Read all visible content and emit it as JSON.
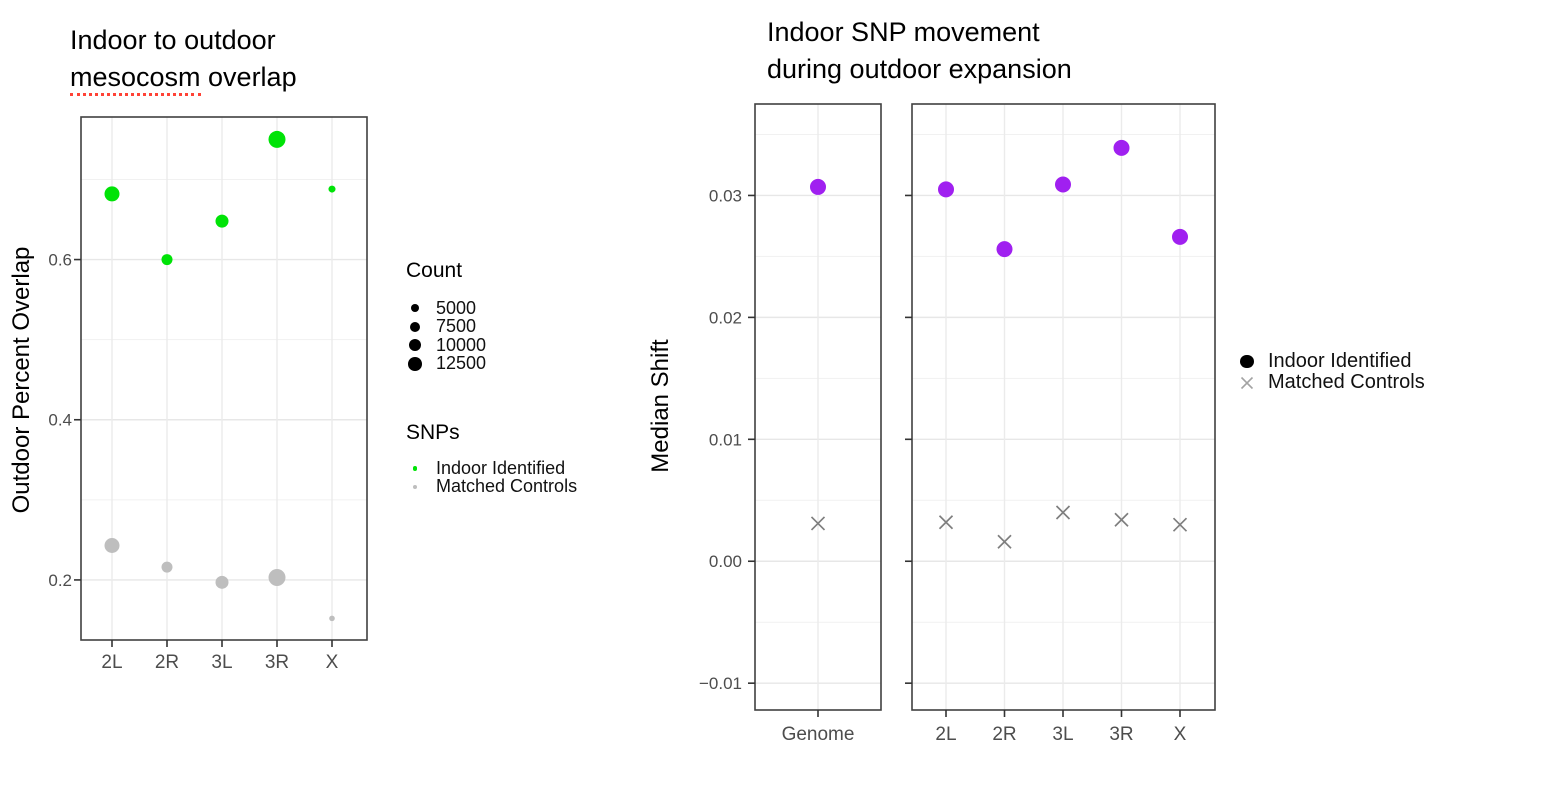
{
  "background": "#ffffff",
  "chart_data": [
    {
      "id": "mesocosm-overlap",
      "type": "scatter",
      "title_line1": "Indoor to outdoor",
      "title_underlined_word": "mesocosm",
      "title_line2_rest": " overlap",
      "ylabel": "Outdoor Percent Overlap",
      "categories": [
        "2L",
        "2R",
        "3L",
        "3R",
        "X"
      ],
      "ylim": [
        0.125,
        0.778
      ],
      "grid": true,
      "legend_position": "right",
      "y_ticks": [
        {
          "value": 0.6,
          "label": "0.6"
        },
        {
          "value": 0.4,
          "label": "0.4"
        },
        {
          "value": 0.2,
          "label": "0.2"
        }
      ],
      "y_minor_gridlines": [
        0.3,
        0.5,
        0.7
      ],
      "series": [
        {
          "name": "Indoor Identified",
          "marker": "circle",
          "color": "#00E307",
          "values": [
            0.682,
            0.6,
            0.648,
            0.75,
            0.688
          ],
          "point_radius_px": [
            7.5,
            5.5,
            6.5,
            8.5,
            3.5
          ]
        },
        {
          "name": "Matched Controls",
          "marker": "circle",
          "color": "#BEBEBE",
          "values": [
            0.243,
            0.216,
            0.197,
            0.203,
            0.152
          ],
          "point_radius_px": [
            7.5,
            5.5,
            6.5,
            8.5,
            2.8
          ]
        }
      ],
      "count_estimates_by_category": [
        12500,
        8000,
        10500,
        14000,
        1500
      ],
      "size_legend": {
        "title": "Count",
        "marker_color": "#000000",
        "entries": [
          {
            "label": "5000",
            "radius_px": 4.2
          },
          {
            "label": "7500",
            "radius_px": 5.0
          },
          {
            "label": "10000",
            "radius_px": 6.0
          },
          {
            "label": "12500",
            "radius_px": 6.9
          }
        ]
      },
      "color_legend": {
        "title": "SNPs",
        "entries": [
          {
            "label": "Indoor Identified",
            "color": "#00E307"
          },
          {
            "label": "Matched Controls",
            "color": "#BEBEBE"
          }
        ]
      }
    },
    {
      "id": "snp-movement",
      "type": "scatter",
      "title_line1": "Indoor SNP movement",
      "title_line2": "during outdoor expansion",
      "ylabel": "Median Shift",
      "ylim": [
        -0.0122,
        0.0375
      ],
      "grid": true,
      "y_ticks": [
        {
          "value": 0.03,
          "label": "0.03"
        },
        {
          "value": 0.02,
          "label": "0.02"
        },
        {
          "value": 0.01,
          "label": "0.01"
        },
        {
          "value": 0.0,
          "label": "0.00"
        },
        {
          "value": -0.01,
          "label": "−0.01"
        }
      ],
      "y_minor_gridlines": [
        0.035,
        0.025,
        0.015,
        0.005,
        -0.005
      ],
      "panels": [
        {
          "categories": [
            "Genome"
          ],
          "series": [
            {
              "name": "Indoor Identified",
              "marker": "circle",
              "color": "#A020F0",
              "values": [
                0.0307
              ]
            },
            {
              "name": "Matched Controls",
              "marker": "x",
              "color": "#7E7E7E",
              "values": [
                0.0031
              ]
            }
          ]
        },
        {
          "categories": [
            "2L",
            "2R",
            "3L",
            "3R",
            "X"
          ],
          "series": [
            {
              "name": "Indoor Identified",
              "marker": "circle",
              "color": "#A020F0",
              "values": [
                0.0305,
                0.0256,
                0.0309,
                0.0339,
                0.0266
              ]
            },
            {
              "name": "Matched Controls",
              "marker": "x",
              "color": "#7E7E7E",
              "values": [
                0.0032,
                0.0016,
                0.004,
                0.0034,
                0.003
              ]
            }
          ]
        }
      ],
      "legend": {
        "entries": [
          {
            "label": "Indoor Identified",
            "marker": "circle",
            "color": "#000000"
          },
          {
            "label": "Matched Controls",
            "marker": "x",
            "color": "#A3A3A3"
          }
        ]
      }
    }
  ]
}
